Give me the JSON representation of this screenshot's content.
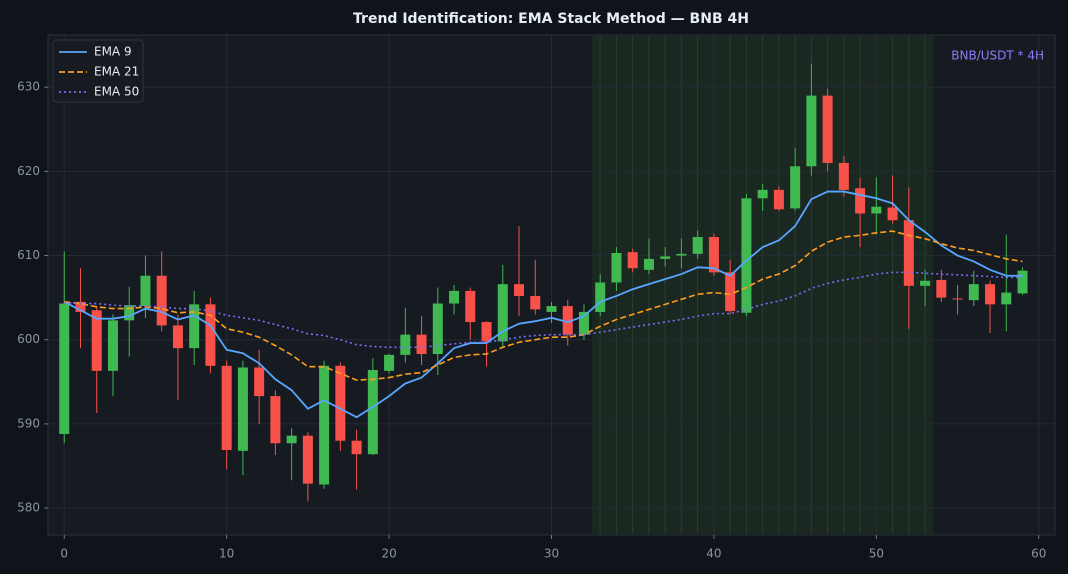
{
  "chart_data": {
    "type": "candlestick",
    "title": "Trend Identification: EMA Stack Method — BNB 4H",
    "annotation": "BNB/USDT * 4H",
    "x": [
      0,
      1,
      2,
      3,
      4,
      5,
      6,
      7,
      8,
      9,
      10,
      11,
      12,
      13,
      14,
      15,
      16,
      17,
      18,
      19,
      20,
      21,
      22,
      23,
      24,
      25,
      26,
      27,
      28,
      29,
      30,
      31,
      32,
      33,
      34,
      35,
      36,
      37,
      38,
      39,
      40,
      41,
      42,
      43,
      44,
      45,
      46,
      47,
      48,
      49,
      50,
      51,
      52,
      53,
      54,
      55,
      56,
      57,
      58,
      59
    ],
    "open": [
      588.8,
      604.5,
      603.5,
      596.3,
      602.3,
      604,
      607.6,
      601.7,
      599,
      604.2,
      596.9,
      586.8,
      596.7,
      593.3,
      587.7,
      588.6,
      582.8,
      596.9,
      588,
      586.4,
      596.3,
      598.2,
      600.6,
      598.3,
      604.3,
      605.8,
      602.1,
      599.8,
      606.6,
      605.2,
      603.3,
      604,
      600.6,
      603.3,
      606.8,
      610.4,
      608.3,
      609.6,
      610,
      610.2,
      612.2,
      608,
      603.2,
      616.8,
      617.8,
      615.6,
      620.6,
      629,
      621,
      618,
      615,
      615.7,
      614.2,
      606.4,
      607.1,
      604.9,
      604.7,
      606.6,
      604.2,
      605.5
    ],
    "high": [
      610.5,
      608.5,
      604,
      603,
      606.3,
      610,
      610.5,
      603,
      605.8,
      605,
      597.5,
      597.5,
      598.8,
      594,
      589.5,
      589,
      597.5,
      597.3,
      589.3,
      597.8,
      598.3,
      603.8,
      602.8,
      606.2,
      606.5,
      606.2,
      602.2,
      608.9,
      613.5,
      609.5,
      604.5,
      604.7,
      604.2,
      607.8,
      611,
      610.8,
      612,
      611,
      612,
      613,
      612.6,
      609.5,
      617.3,
      618.5,
      618.2,
      622.8,
      632.8,
      629.8,
      621.8,
      619.2,
      619.3,
      619.5,
      618.1,
      608.3,
      608.3,
      606.5,
      608.2,
      607,
      612.5,
      608.6
    ],
    "low": [
      587.7,
      599,
      591.3,
      593.3,
      598,
      602.6,
      601,
      592.8,
      597,
      596,
      584.6,
      583.9,
      590,
      586.3,
      583.3,
      580.8,
      582.3,
      586.8,
      582.2,
      586.3,
      596,
      597.3,
      597,
      595.8,
      603,
      600,
      596.8,
      599.2,
      602.8,
      603,
      602,
      599.3,
      600,
      602.8,
      605.8,
      608,
      607.8,
      608.7,
      608.5,
      609.6,
      607.6,
      603,
      602.8,
      615.3,
      615.3,
      615.3,
      619.5,
      620,
      617,
      611,
      612.5,
      613.8,
      601.3,
      604,
      604.5,
      603,
      604,
      600.8,
      601,
      605.3
    ],
    "close": [
      604.3,
      603.3,
      596.3,
      602.3,
      604.1,
      607.6,
      601.7,
      599,
      604.2,
      596.9,
      586.9,
      596.7,
      593.3,
      587.7,
      588.6,
      582.9,
      596.9,
      588,
      586.4,
      596.4,
      598.2,
      600.6,
      598.3,
      604.3,
      605.8,
      602.1,
      599.8,
      606.6,
      605.2,
      603.6,
      604,
      600.6,
      603.3,
      606.8,
      610.3,
      608.5,
      609.6,
      609.9,
      610.2,
      612.2,
      608,
      603.4,
      616.8,
      617.8,
      615.5,
      620.6,
      629,
      621,
      617.8,
      615,
      615.8,
      614.2,
      606.4,
      607,
      605,
      604.8,
      606.6,
      604.2,
      605.6,
      608.2
    ],
    "up_color": "#3fb950",
    "down_color": "#f85149",
    "series": [
      {
        "name": "EMA 9",
        "color": "#58a6ff",
        "line_style": "solid",
        "values": [
          604.5,
          603.5,
          602.5,
          602.5,
          602.8,
          603.7,
          603.3,
          602.4,
          602.9,
          601.7,
          598.8,
          598.4,
          597.2,
          595.3,
          594,
          591.8,
          592.8,
          591.8,
          590.8,
          592,
          593.3,
          594.8,
          595.5,
          597.2,
          599,
          599.6,
          599.6,
          601,
          601.9,
          602.2,
          602.6,
          602.1,
          602.8,
          604.5,
          605.2,
          606,
          606.6,
          607.2,
          607.8,
          608.6,
          608.5,
          607.6,
          609.4,
          611,
          611.8,
          613.5,
          616.7,
          617.6,
          617.6,
          617.2,
          616.8,
          616.2,
          614.2,
          612.8,
          611.2,
          610,
          609.3,
          608.3,
          607.6,
          607.6
        ]
      },
      {
        "name": "EMA 21",
        "color": "#ff9f1c",
        "line_style": "dashed",
        "values": [
          604.5,
          604.3,
          603.9,
          603.7,
          603.7,
          603.9,
          603.7,
          603.2,
          603.3,
          602.9,
          601.3,
          600.9,
          600.3,
          599.3,
          598.2,
          596.8,
          596.8,
          596,
          595.2,
          595.3,
          595.5,
          595.9,
          596.1,
          597,
          597.9,
          598.2,
          598.3,
          599.1,
          599.7,
          600,
          600.3,
          600.3,
          600.6,
          601.6,
          602.4,
          603,
          603.6,
          604.2,
          604.8,
          605.4,
          605.6,
          605.4,
          606.2,
          607.2,
          607.8,
          608.8,
          610.5,
          611.6,
          612.2,
          612.4,
          612.7,
          612.9,
          612.4,
          612,
          611.4,
          610.9,
          610.6,
          610.1,
          609.6,
          609.3
        ]
      },
      {
        "name": "EMA 50",
        "color": "#7b6cf6",
        "line_style": "dotted",
        "values": [
          604.4,
          604.3,
          604.3,
          604.1,
          604,
          604,
          603.9,
          603.7,
          603.7,
          603.4,
          602.9,
          602.6,
          602.3,
          601.8,
          601.3,
          600.7,
          600.5,
          600,
          599.4,
          599.2,
          599.1,
          599.1,
          599.1,
          599.3,
          599.5,
          599.7,
          599.7,
          600,
          600.3,
          600.5,
          600.6,
          600.6,
          600.6,
          600.9,
          601.2,
          601.5,
          601.8,
          602.1,
          602.4,
          602.8,
          603.1,
          603.1,
          603.6,
          604.2,
          604.6,
          605.2,
          606.1,
          606.7,
          607.1,
          607.4,
          607.8,
          608,
          608,
          607.9,
          607.8,
          607.7,
          607.6,
          607.5,
          607.4,
          607.4
        ]
      }
    ],
    "highlight": [
      32.5,
      53.5
    ],
    "xlim": [
      -1,
      61
    ],
    "ylim": [
      576.8,
      636.2
    ],
    "xticks": [
      0,
      10,
      20,
      30,
      40,
      50,
      60
    ],
    "yticks": [
      580,
      590,
      600,
      610,
      620,
      630
    ],
    "grid": true,
    "legend": "upper left"
  }
}
